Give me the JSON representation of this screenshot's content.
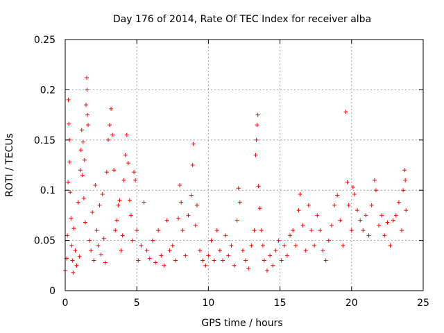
{
  "chart_data": {
    "type": "scatter",
    "title": "Day 176 of 2014, Rate Of TEC Index for receiver alba",
    "xlabel": "GPS time / hours",
    "ylabel": "ROTI / TECUs",
    "xlim": [
      0,
      25
    ],
    "ylim": [
      0,
      0.25
    ],
    "xticks": [
      0,
      5,
      10,
      15,
      20,
      25
    ],
    "xtick_labels": [
      "0",
      "5",
      "10",
      "15",
      "20",
      "25"
    ],
    "yticks": [
      0,
      0.05,
      0.1,
      0.15,
      0.2,
      0.25
    ],
    "ytick_labels": [
      "0",
      "0.05",
      "0.1",
      "0.15",
      "0.2",
      "0.25"
    ],
    "grid": true,
    "marker": "+",
    "color": "#ff0000",
    "series": [
      {
        "name": "ROTI",
        "points": [
          [
            0.0,
            0.02
          ],
          [
            0.1,
            0.032
          ],
          [
            0.15,
            0.055
          ],
          [
            0.2,
            0.108
          ],
          [
            0.22,
            0.19
          ],
          [
            0.25,
            0.166
          ],
          [
            0.3,
            0.15
          ],
          [
            0.3,
            0.128
          ],
          [
            0.35,
            0.098
          ],
          [
            0.4,
            0.072
          ],
          [
            0.45,
            0.045
          ],
          [
            0.5,
            0.03
          ],
          [
            0.55,
            0.018
          ],
          [
            0.6,
            0.062
          ],
          [
            0.7,
            0.04
          ],
          [
            0.8,
            0.025
          ],
          [
            0.9,
            0.088
          ],
          [
            1.0,
            0.034
          ],
          [
            1.05,
            0.12
          ],
          [
            1.1,
            0.14
          ],
          [
            1.15,
            0.16
          ],
          [
            1.2,
            0.115
          ],
          [
            1.25,
            0.148
          ],
          [
            1.3,
            0.092
          ],
          [
            1.35,
            0.13
          ],
          [
            1.4,
            0.068
          ],
          [
            1.45,
            0.185
          ],
          [
            1.5,
            0.212
          ],
          [
            1.52,
            0.2
          ],
          [
            1.55,
            0.175
          ],
          [
            1.6,
            0.165
          ],
          [
            1.7,
            0.05
          ],
          [
            1.8,
            0.04
          ],
          [
            1.9,
            0.078
          ],
          [
            2.0,
            0.03
          ],
          [
            2.1,
            0.105
          ],
          [
            2.2,
            0.06
          ],
          [
            2.3,
            0.045
          ],
          [
            2.4,
            0.085
          ],
          [
            2.5,
            0.036
          ],
          [
            2.6,
            0.096
          ],
          [
            2.7,
            0.052
          ],
          [
            2.8,
            0.028
          ],
          [
            2.9,
            0.118
          ],
          [
            3.0,
            0.15
          ],
          [
            3.1,
            0.165
          ],
          [
            3.2,
            0.181
          ],
          [
            3.3,
            0.155
          ],
          [
            3.4,
            0.12
          ],
          [
            3.5,
            0.06
          ],
          [
            3.6,
            0.07
          ],
          [
            3.7,
            0.085
          ],
          [
            3.8,
            0.09
          ],
          [
            3.9,
            0.04
          ],
          [
            4.0,
            0.055
          ],
          [
            4.1,
            0.11
          ],
          [
            4.2,
            0.135
          ],
          [
            4.3,
            0.155
          ],
          [
            4.4,
            0.127
          ],
          [
            4.5,
            0.09
          ],
          [
            4.6,
            0.075
          ],
          [
            4.7,
            0.05
          ],
          [
            4.8,
            0.118
          ],
          [
            4.9,
            0.11
          ],
          [
            5.0,
            0.06
          ],
          [
            5.1,
            0.03
          ],
          [
            5.3,
            0.045
          ],
          [
            5.5,
            0.088
          ],
          [
            5.7,
            0.04
          ],
          [
            5.9,
            0.032
          ],
          [
            6.1,
            0.05
          ],
          [
            6.3,
            0.028
          ],
          [
            6.5,
            0.06
          ],
          [
            6.7,
            0.035
          ],
          [
            6.9,
            0.025
          ],
          [
            7.1,
            0.07
          ],
          [
            7.3,
            0.04
          ],
          [
            7.5,
            0.045
          ],
          [
            7.7,
            0.03
          ],
          [
            7.9,
            0.072
          ],
          [
            8.0,
            0.105
          ],
          [
            8.1,
            0.088
          ],
          [
            8.2,
            0.06
          ],
          [
            8.4,
            0.035
          ],
          [
            8.6,
            0.075
          ],
          [
            8.8,
            0.095
          ],
          [
            8.9,
            0.125
          ],
          [
            8.95,
            0.146
          ],
          [
            9.1,
            0.065
          ],
          [
            9.2,
            0.085
          ],
          [
            9.4,
            0.04
          ],
          [
            9.6,
            0.03
          ],
          [
            9.8,
            0.025
          ],
          [
            10.0,
            0.035
          ],
          [
            10.2,
            0.05
          ],
          [
            10.4,
            0.03
          ],
          [
            10.6,
            0.06
          ],
          [
            10.8,
            0.04
          ],
          [
            11.0,
            0.03
          ],
          [
            11.2,
            0.055
          ],
          [
            11.4,
            0.035
          ],
          [
            11.6,
            0.045
          ],
          [
            11.8,
            0.025
          ],
          [
            12.0,
            0.07
          ],
          [
            12.1,
            0.102
          ],
          [
            12.2,
            0.088
          ],
          [
            12.4,
            0.04
          ],
          [
            12.6,
            0.03
          ],
          [
            12.8,
            0.022
          ],
          [
            13.0,
            0.045
          ],
          [
            13.2,
            0.06
          ],
          [
            13.3,
            0.135
          ],
          [
            13.35,
            0.15
          ],
          [
            13.4,
            0.165
          ],
          [
            13.45,
            0.175
          ],
          [
            13.5,
            0.104
          ],
          [
            13.6,
            0.082
          ],
          [
            13.7,
            0.06
          ],
          [
            13.8,
            0.045
          ],
          [
            13.9,
            0.03
          ],
          [
            14.1,
            0.02
          ],
          [
            14.3,
            0.035
          ],
          [
            14.5,
            0.025
          ],
          [
            14.7,
            0.04
          ],
          [
            14.9,
            0.05
          ],
          [
            15.1,
            0.03
          ],
          [
            15.3,
            0.045
          ],
          [
            15.5,
            0.035
          ],
          [
            15.7,
            0.055
          ],
          [
            15.9,
            0.06
          ],
          [
            16.1,
            0.045
          ],
          [
            16.3,
            0.08
          ],
          [
            16.4,
            0.096
          ],
          [
            16.6,
            0.065
          ],
          [
            16.8,
            0.04
          ],
          [
            17.0,
            0.085
          ],
          [
            17.2,
            0.06
          ],
          [
            17.4,
            0.045
          ],
          [
            17.6,
            0.075
          ],
          [
            17.8,
            0.06
          ],
          [
            18.0,
            0.04
          ],
          [
            18.2,
            0.03
          ],
          [
            18.4,
            0.05
          ],
          [
            18.6,
            0.065
          ],
          [
            18.8,
            0.085
          ],
          [
            19.0,
            0.095
          ],
          [
            19.2,
            0.07
          ],
          [
            19.4,
            0.045
          ],
          [
            19.6,
            0.178
          ],
          [
            19.7,
            0.108
          ],
          [
            19.8,
            0.085
          ],
          [
            20.0,
            0.06
          ],
          [
            20.1,
            0.103
          ],
          [
            20.2,
            0.096
          ],
          [
            20.4,
            0.08
          ],
          [
            20.6,
            0.07
          ],
          [
            20.8,
            0.06
          ],
          [
            21.0,
            0.075
          ],
          [
            21.2,
            0.055
          ],
          [
            21.4,
            0.085
          ],
          [
            21.6,
            0.11
          ],
          [
            21.7,
            0.1
          ],
          [
            21.9,
            0.065
          ],
          [
            22.1,
            0.075
          ],
          [
            22.3,
            0.055
          ],
          [
            22.5,
            0.068
          ],
          [
            22.7,
            0.045
          ],
          [
            22.9,
            0.07
          ],
          [
            23.1,
            0.075
          ],
          [
            23.3,
            0.088
          ],
          [
            23.5,
            0.06
          ],
          [
            23.6,
            0.1
          ],
          [
            23.7,
            0.12
          ],
          [
            23.75,
            0.11
          ],
          [
            23.8,
            0.08
          ]
        ]
      }
    ]
  }
}
